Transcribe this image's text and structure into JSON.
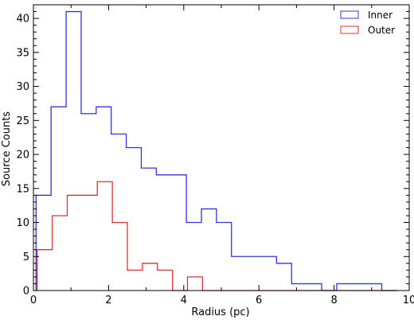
{
  "chart_data": {
    "type": "histogram",
    "xlabel": "Radius (pc)",
    "ylabel": "Source Counts",
    "xlim": [
      0,
      10
    ],
    "ylim": [
      0,
      42
    ],
    "xticks": [
      "0",
      "2",
      "4",
      "6",
      "8",
      "10"
    ],
    "yticks": [
      "0",
      "5",
      "10",
      "15",
      "20",
      "25",
      "30",
      "35",
      "40"
    ],
    "grid": false,
    "legend_position": "top-right",
    "series": [
      {
        "name": "Inner",
        "color": "#3333dd",
        "bin_edges": [
          0.07,
          0.47,
          0.87,
          1.27,
          1.67,
          2.07,
          2.47,
          2.87,
          3.27,
          3.67,
          4.07,
          4.47,
          4.87,
          5.27,
          5.67,
          6.07,
          6.47,
          6.87,
          7.27,
          7.67,
          8.07,
          8.47,
          8.87,
          9.27,
          9.67
        ],
        "counts": [
          14,
          27,
          41,
          26,
          27,
          23,
          21,
          18,
          17,
          17,
          10,
          12,
          10,
          5,
          5,
          5,
          4,
          1,
          1,
          0,
          1,
          1,
          1,
          0
        ]
      },
      {
        "name": "Outer",
        "color": "#dd3333",
        "bin_edges": [
          0.1,
          0.5,
          0.9,
          1.3,
          1.7,
          2.1,
          2.5,
          2.9,
          3.3,
          3.7,
          4.1,
          4.5,
          4.9,
          5.3,
          5.7,
          6.1,
          6.5,
          6.9,
          7.3,
          7.7,
          8.1,
          8.5,
          8.9,
          9.3,
          9.7
        ],
        "counts": [
          6,
          11,
          14,
          14,
          16,
          10,
          3,
          4,
          3,
          0,
          2,
          0,
          0,
          0,
          0,
          0,
          0,
          0,
          0,
          0,
          0,
          0,
          0,
          0
        ]
      }
    ]
  }
}
